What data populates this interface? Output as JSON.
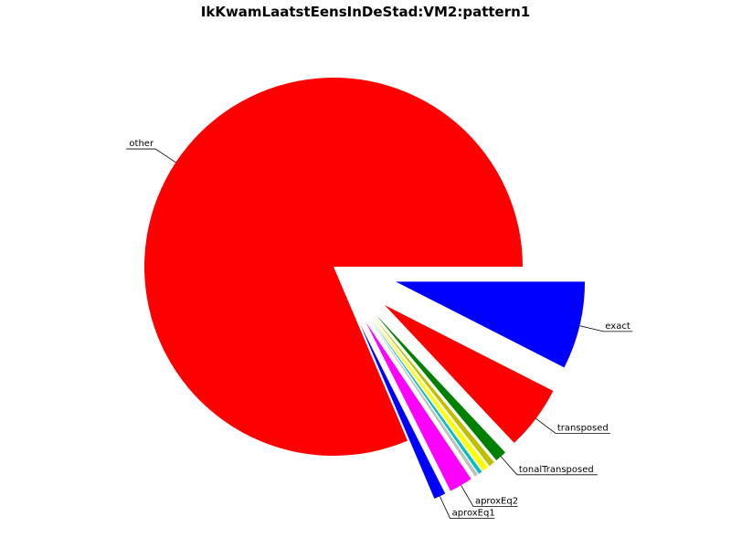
{
  "chart_data": {
    "type": "pie",
    "title": "IkKwamLaatstEensInDeStad:VM2:pattern1",
    "start_angle_deg": 0,
    "direction": "clockwise",
    "slices": [
      {
        "label": "exact",
        "value": 7.5,
        "color": "#0000ff",
        "exploded": true
      },
      {
        "label": "transposed",
        "value": 5.5,
        "color": "#ff0000",
        "exploded": true
      },
      {
        "label": "tonalTransposed",
        "value": 1.0,
        "color": "#008000",
        "exploded": true
      },
      {
        "label": "",
        "value": 0.5,
        "color": "#bfbf00",
        "exploded": true
      },
      {
        "label": "",
        "value": 0.5,
        "color": "#ffff00",
        "exploded": true
      },
      {
        "label": "",
        "value": 0.3,
        "color": "#00bfbf",
        "exploded": true
      },
      {
        "label": "",
        "value": 0.3,
        "color": "#bfbfbf",
        "exploded": true
      },
      {
        "label": "aproxEq2",
        "value": 2.0,
        "color": "#ff00ff",
        "exploded": true
      },
      {
        "label": "aproxEq1",
        "value": 1.0,
        "color": "#0000ff",
        "exploded": true
      },
      {
        "label": "other",
        "value": 81.4,
        "color": "#ff0000",
        "exploded": false
      }
    ]
  }
}
